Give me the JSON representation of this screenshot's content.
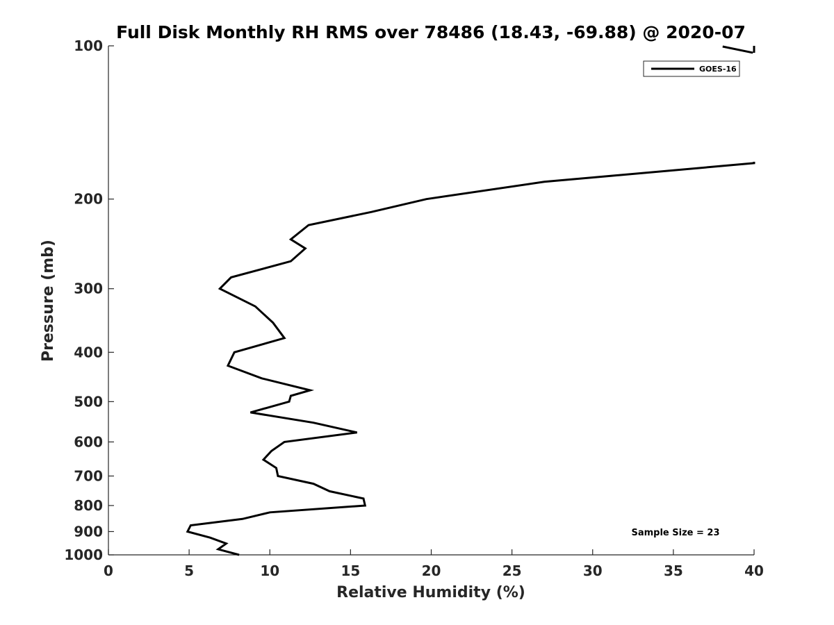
{
  "chart_data": {
    "type": "line",
    "title": "Full Disk Monthly RH RMS over 78486 (18.43, -69.88) @ 2020-07",
    "xlabel": "Relative Humidity (%)",
    "ylabel": "Pressure (mb)",
    "xlim": [
      0,
      40
    ],
    "ylim": [
      100,
      1000
    ],
    "y_scale": "log",
    "y_reversed": true,
    "x_ticks": [
      0,
      5,
      10,
      15,
      20,
      25,
      30,
      35,
      40
    ],
    "y_ticks": [
      100,
      200,
      300,
      400,
      500,
      600,
      700,
      800,
      900,
      1000
    ],
    "grid": false,
    "legend_position": "top-right",
    "series": [
      {
        "name": "GOES-16",
        "color": "#000000",
        "points": [
          [
            8.1,
            1000
          ],
          [
            6.8,
            975
          ],
          [
            7.3,
            950
          ],
          [
            6.3,
            925
          ],
          [
            4.9,
            900
          ],
          [
            5.1,
            875
          ],
          [
            8.3,
            850
          ],
          [
            10,
            825
          ],
          [
            15.9,
            800
          ],
          [
            15.8,
            775
          ],
          [
            13.7,
            750
          ],
          [
            12.7,
            725
          ],
          [
            10.5,
            700
          ],
          [
            10.4,
            675
          ],
          [
            9.6,
            650
          ],
          [
            10.1,
            625
          ],
          [
            10.9,
            600
          ],
          [
            15.4,
            575
          ],
          [
            12.7,
            550
          ],
          [
            8.8,
            525
          ],
          [
            11.2,
            500
          ],
          [
            11.3,
            487
          ],
          [
            12.5,
            475
          ],
          [
            9.5,
            450
          ],
          [
            7.4,
            425
          ],
          [
            7.8,
            400
          ],
          [
            10.9,
            375
          ],
          [
            10.2,
            350
          ],
          [
            9.1,
            325
          ],
          [
            6.9,
            300
          ],
          [
            7.6,
            285
          ],
          [
            11.3,
            265
          ],
          [
            12.2,
            250
          ],
          [
            11.3,
            240
          ],
          [
            12.4,
            225
          ],
          [
            16.3,
            212
          ],
          [
            19.7,
            200
          ],
          [
            27.0,
            185
          ],
          [
            40,
            170
          ],
          [
            40,
            100
          ]
        ],
        "offscale_segment": [
          [
            39,
            100
          ],
          [
            40,
            102
          ]
        ]
      }
    ],
    "annotations": [
      "Sample Size = 23"
    ]
  }
}
